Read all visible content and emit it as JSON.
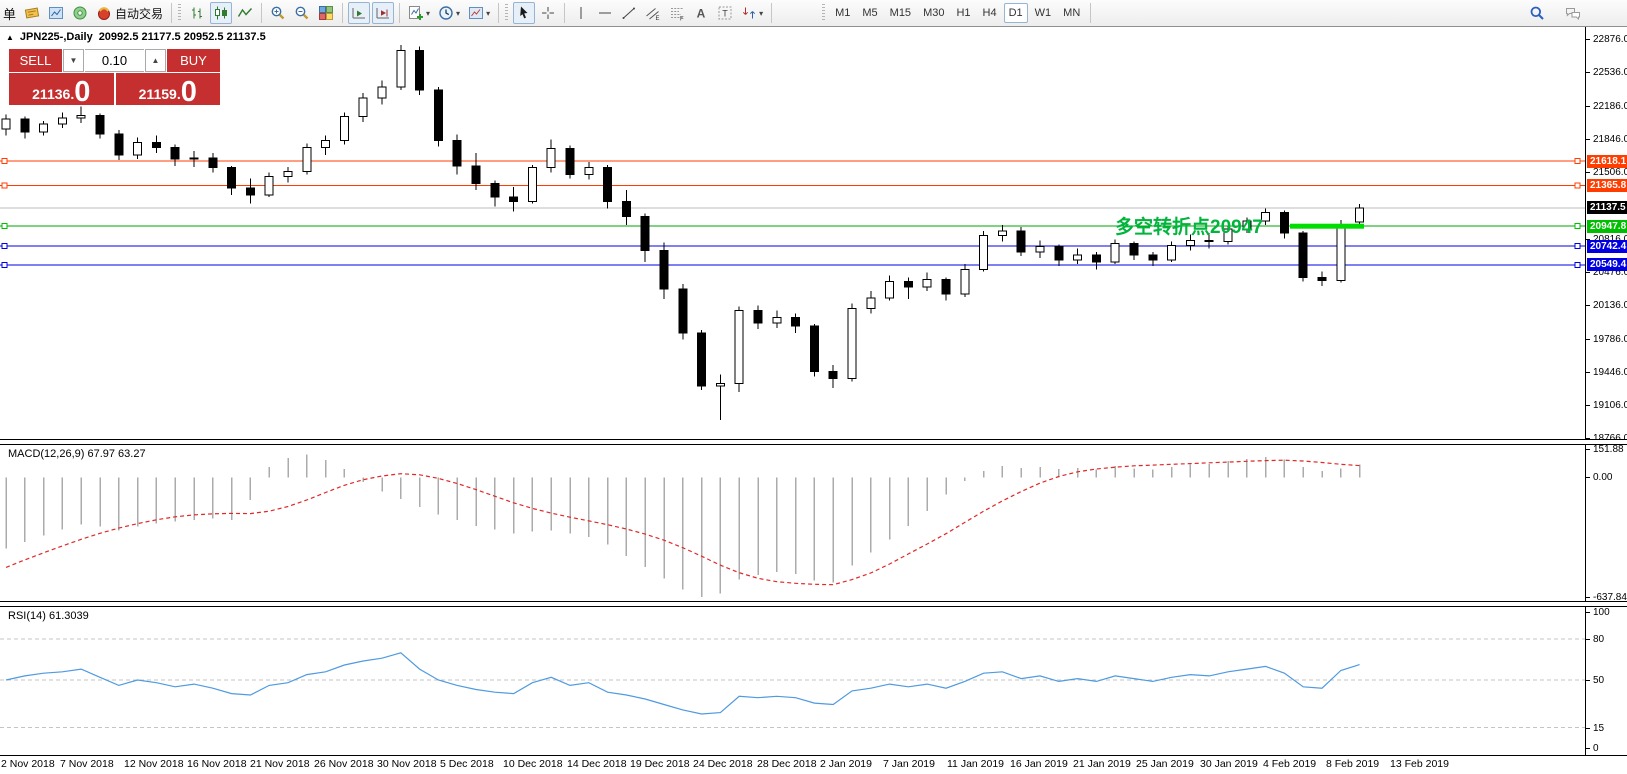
{
  "toolbar": {
    "menu_fragment": "单",
    "groups": [
      {
        "grip": false,
        "items": [
          {
            "name": "new-order",
            "icon": "new-order"
          },
          {
            "name": "open-charts",
            "icon": "charts"
          },
          {
            "name": "signals",
            "icon": "signal"
          },
          {
            "name": "auto-trading",
            "icon": "robot",
            "label": "自动交易"
          }
        ]
      },
      {
        "grip": true,
        "items": [
          {
            "name": "bar-chart",
            "icon": "bars"
          },
          {
            "name": "candlestick-chart",
            "icon": "candles",
            "pressed": true
          },
          {
            "name": "line-chart",
            "icon": "linechart"
          }
        ]
      },
      {
        "grip": false,
        "items": [
          {
            "name": "zoom-in",
            "icon": "zoom-in"
          },
          {
            "name": "zoom-out",
            "icon": "zoom-out"
          },
          {
            "name": "tile-windows",
            "icon": "tile"
          }
        ]
      },
      {
        "grip": false,
        "items": [
          {
            "name": "auto-scroll",
            "icon": "autoscroll",
            "pressed": true
          },
          {
            "name": "chart-shift",
            "icon": "shift",
            "pressed": true
          }
        ]
      },
      {
        "grip": false,
        "items": [
          {
            "name": "indicators",
            "icon": "indicators",
            "dropdown": true
          },
          {
            "name": "periods",
            "icon": "clock",
            "dropdown": true
          },
          {
            "name": "templates",
            "icon": "template",
            "dropdown": true
          }
        ]
      },
      {
        "grip": true,
        "items": [
          {
            "name": "cursor",
            "icon": "cursor",
            "pressed": true
          },
          {
            "name": "crosshair",
            "icon": "crosshair"
          }
        ]
      },
      {
        "grip": false,
        "items": [
          {
            "name": "vertical-line",
            "icon": "vline"
          },
          {
            "name": "horizontal-line",
            "icon": "hline"
          },
          {
            "name": "trendline",
            "icon": "trend"
          },
          {
            "name": "equidistant-channel",
            "icon": "channel"
          },
          {
            "name": "fibonacci",
            "icon": "fibo"
          },
          {
            "name": "text",
            "icon": "textA"
          },
          {
            "name": "text-label",
            "icon": "labelT"
          },
          {
            "name": "arrows",
            "icon": "arrows",
            "dropdown": true
          }
        ]
      }
    ],
    "timeframes": {
      "options": [
        "M1",
        "M5",
        "M15",
        "M30",
        "H1",
        "H4",
        "D1",
        "W1",
        "MN"
      ],
      "active": "D1"
    },
    "right_icons": [
      {
        "name": "search",
        "icon": "search"
      },
      {
        "name": "chat",
        "icon": "chat"
      }
    ]
  },
  "chart": {
    "title": {
      "marker": "▲",
      "symbol": "JPN225-,Daily",
      "ohlc": "20992.5 21177.5 20952.5 21137.5"
    },
    "trade_panel": {
      "sell_label": "SELL",
      "buy_label": "BUY",
      "volume": "0.10",
      "down_arrow": "▼",
      "up_arrow": "▲",
      "sell_price_int": "21136",
      "sell_price_dot": ".",
      "sell_price_big": "0",
      "buy_price_int": "21159",
      "buy_price_dot": ".",
      "buy_price_big": "0"
    },
    "annotation": {
      "text": "多空转折点20947",
      "color": "#00b43c"
    },
    "levels": [
      {
        "price": 21618.1,
        "label": "21618.1",
        "color": "#ff3d00",
        "handles": true
      },
      {
        "price": 21365.8,
        "label": "21365.8",
        "color": "#ff3d00",
        "handles": true
      },
      {
        "price": 21137.5,
        "label": "21137.5",
        "color": "#000000",
        "line": "#bdbdbd",
        "handles": false
      },
      {
        "price": 20947.8,
        "label": "20947.8",
        "color": "#00bf00",
        "line": "#00a400",
        "handles": true
      },
      {
        "price": 20742.4,
        "label": "20742.4",
        "color": "#0000e0",
        "handles": true
      },
      {
        "price": 20549.4,
        "label": "20549.4",
        "color": "#0000e0",
        "handles": true
      }
    ],
    "y_axis_ticks": [
      22876.0,
      22536.0,
      22186.0,
      21846.0,
      21506.0,
      20816.0,
      20476.0,
      20136.0,
      19786.0,
      19446.0,
      19106.0,
      18766.0
    ],
    "breakout_segment": {
      "price": 20947.8,
      "color": "#00dd00"
    }
  },
  "macd_panel": {
    "label": "MACD(12,26,9) 67.97 63.27",
    "axis": [
      {
        "v": 151.88,
        "t": "151.88"
      },
      {
        "v": 0,
        "t": "0.00"
      },
      {
        "v": -637.84,
        "t": "-637.84"
      }
    ]
  },
  "rsi_panel": {
    "label": "RSI(14) 61.3039",
    "axis": [
      {
        "v": 100,
        "t": "100"
      },
      {
        "v": 80,
        "t": "80"
      },
      {
        "v": 50,
        "t": "50"
      },
      {
        "v": 15,
        "t": "15"
      },
      {
        "v": 0,
        "t": "0"
      }
    ],
    "levels": [
      80,
      50,
      15
    ]
  },
  "chart_data": {
    "type": "candlestick",
    "symbol": "JPN225-",
    "period": "Daily",
    "current": {
      "open": 20992.5,
      "high": 21177.5,
      "low": 20952.5,
      "close": 21137.5,
      "bid": 21136.0,
      "ask": 21159.0
    },
    "price_range": [
      18766.0,
      22876.0
    ],
    "date_labels": [
      "2 Nov 2018",
      "7 Nov 2018",
      "12 Nov 2018",
      "16 Nov 2018",
      "21 Nov 2018",
      "26 Nov 2018",
      "30 Nov 2018",
      "5 Dec 2018",
      "10 Dec 2018",
      "14 Dec 2018",
      "19 Dec 2018",
      "24 Dec 2018",
      "28 Dec 2018",
      "2 Jan 2019",
      "7 Jan 2019",
      "11 Jan 2019",
      "16 Jan 2019",
      "21 Jan 2019",
      "25 Jan 2019",
      "30 Jan 2019",
      "4 Feb 2019",
      "8 Feb 2019",
      "13 Feb 2019"
    ],
    "ohlc": [
      [
        21950,
        22100,
        21880,
        22050
      ],
      [
        22050,
        22080,
        21850,
        21920
      ],
      [
        21920,
        22030,
        21880,
        22000
      ],
      [
        22000,
        22120,
        21960,
        22060
      ],
      [
        22060,
        22180,
        22010,
        22090
      ],
      [
        22090,
        22110,
        21850,
        21900
      ],
      [
        21900,
        21940,
        21630,
        21680
      ],
      [
        21680,
        21860,
        21640,
        21810
      ],
      [
        21810,
        21880,
        21700,
        21760
      ],
      [
        21760,
        21790,
        21570,
        21640
      ],
      [
        21640,
        21720,
        21560,
        21650
      ],
      [
        21650,
        21700,
        21500,
        21550
      ],
      [
        21550,
        21570,
        21270,
        21340
      ],
      [
        21340,
        21440,
        21180,
        21270
      ],
      [
        21270,
        21500,
        21250,
        21460
      ],
      [
        21460,
        21560,
        21400,
        21510
      ],
      [
        21510,
        21800,
        21480,
        21760
      ],
      [
        21760,
        21880,
        21680,
        21830
      ],
      [
        21830,
        22120,
        21790,
        22080
      ],
      [
        22080,
        22320,
        22020,
        22270
      ],
      [
        22270,
        22450,
        22200,
        22380
      ],
      [
        22380,
        22815,
        22350,
        22760
      ],
      [
        22760,
        22800,
        22300,
        22350
      ],
      [
        22350,
        22380,
        21770,
        21830
      ],
      [
        21830,
        21890,
        21480,
        21570
      ],
      [
        21570,
        21700,
        21320,
        21390
      ],
      [
        21390,
        21420,
        21150,
        21250
      ],
      [
        21250,
        21350,
        21100,
        21200
      ],
      [
        21200,
        21580,
        21180,
        21550
      ],
      [
        21550,
        21840,
        21500,
        21750
      ],
      [
        21750,
        21780,
        21440,
        21480
      ],
      [
        21480,
        21610,
        21430,
        21550
      ],
      [
        21550,
        21580,
        21130,
        21200
      ],
      [
        21200,
        21320,
        20960,
        21050
      ],
      [
        21050,
        21080,
        20580,
        20700
      ],
      [
        20700,
        20780,
        20200,
        20300
      ],
      [
        20300,
        20350,
        19780,
        19850
      ],
      [
        19850,
        19880,
        19260,
        19300
      ],
      [
        19300,
        19420,
        18950,
        19330
      ],
      [
        19330,
        20120,
        19240,
        20080
      ],
      [
        20080,
        20130,
        19890,
        19950
      ],
      [
        19950,
        20080,
        19900,
        20010
      ],
      [
        20010,
        20050,
        19850,
        19920
      ],
      [
        19920,
        19940,
        19400,
        19450
      ],
      [
        19450,
        19520,
        19280,
        19380
      ],
      [
        19380,
        20150,
        19350,
        20100
      ],
      [
        20100,
        20280,
        20050,
        20210
      ],
      [
        20210,
        20440,
        20180,
        20380
      ],
      [
        20380,
        20420,
        20200,
        20320
      ],
      [
        20320,
        20470,
        20280,
        20400
      ],
      [
        20400,
        20420,
        20180,
        20250
      ],
      [
        20250,
        20560,
        20220,
        20500
      ],
      [
        20500,
        20900,
        20480,
        20850
      ],
      [
        20850,
        20960,
        20790,
        20900
      ],
      [
        20900,
        20940,
        20640,
        20680
      ],
      [
        20680,
        20800,
        20620,
        20740
      ],
      [
        20740,
        20760,
        20540,
        20600
      ],
      [
        20600,
        20720,
        20560,
        20650
      ],
      [
        20650,
        20680,
        20500,
        20580
      ],
      [
        20580,
        20810,
        20560,
        20770
      ],
      [
        20770,
        20790,
        20600,
        20650
      ],
      [
        20650,
        20680,
        20540,
        20600
      ],
      [
        20600,
        20790,
        20580,
        20750
      ],
      [
        20750,
        20860,
        20700,
        20800
      ],
      [
        20800,
        20880,
        20720,
        20790
      ],
      [
        20790,
        20950,
        20760,
        20920
      ],
      [
        20920,
        21040,
        20880,
        21000
      ],
      [
        21000,
        21130,
        20960,
        21090
      ],
      [
        21090,
        21110,
        20820,
        20880
      ],
      [
        20880,
        20900,
        20380,
        20420
      ],
      [
        20420,
        20480,
        20330,
        20390
      ],
      [
        20390,
        21010,
        20370,
        20960
      ],
      [
        20992.5,
        21177.5,
        20952.5,
        21137.5
      ]
    ],
    "indicators": [
      {
        "type": "macd",
        "params": "12,26,9",
        "main_value": 67.97,
        "signal_value": 63.27,
        "range": [
          -637.84,
          151.88
        ],
        "histogram": [
          -380,
          -345,
          -310,
          -278,
          -252,
          -262,
          -282,
          -262,
          -246,
          -236,
          -226,
          -220,
          -228,
          -120,
          55,
          105,
          122,
          92,
          45,
          -25,
          -75,
          -115,
          -158,
          -198,
          -228,
          -258,
          -278,
          -298,
          -288,
          -282,
          -298,
          -318,
          -358,
          -418,
          -478,
          -538,
          -598,
          -637.8,
          -618,
          -545,
          -520,
          -505,
          -515,
          -550,
          -560,
          -470,
          -400,
          -330,
          -260,
          -180,
          -90,
          -20,
          35,
          60,
          50,
          55,
          45,
          50,
          42,
          60,
          48,
          42,
          55,
          70,
          72,
          88,
          98,
          108,
          95,
          55,
          35,
          48,
          67.97
        ],
        "signal": [
          -480,
          -440,
          -402,
          -365,
          -330,
          -298,
          -270,
          -246,
          -226,
          -210,
          -200,
          -194,
          -192,
          -193,
          -180,
          -155,
          -120,
          -80,
          -42,
          -12,
          8,
          20,
          14,
          -5,
          -32,
          -65,
          -100,
          -135,
          -165,
          -190,
          -212,
          -232,
          -252,
          -275,
          -302,
          -335,
          -375,
          -420,
          -468,
          -508,
          -538,
          -556,
          -565,
          -570,
          -572,
          -545,
          -510,
          -462,
          -408,
          -355,
          -300,
          -240,
          -180,
          -125,
          -75,
          -30,
          5,
          30,
          45,
          55,
          62,
          66,
          70,
          74,
          78,
          82,
          86,
          90,
          92,
          88,
          80,
          70,
          63.27
        ]
      },
      {
        "type": "rsi",
        "params": "14",
        "value": 61.3039,
        "range": [
          0,
          100
        ],
        "levels": [
          80,
          50,
          15
        ],
        "values": [
          50,
          53,
          55,
          56,
          58,
          52,
          46,
          50,
          48,
          45,
          47,
          44,
          40,
          39,
          46,
          48,
          54,
          56,
          61,
          64,
          66,
          70,
          58,
          50,
          46,
          43,
          41,
          40,
          48,
          52,
          46,
          48,
          41,
          39,
          36,
          32,
          28,
          25,
          26,
          38,
          37,
          38,
          37,
          33,
          32,
          42,
          44,
          47,
          45,
          47,
          44,
          49,
          55,
          56,
          51,
          53,
          49,
          51,
          49,
          53,
          51,
          49,
          52,
          54,
          53,
          56,
          58,
          60,
          55,
          45,
          44,
          57,
          61.3
        ]
      }
    ]
  }
}
